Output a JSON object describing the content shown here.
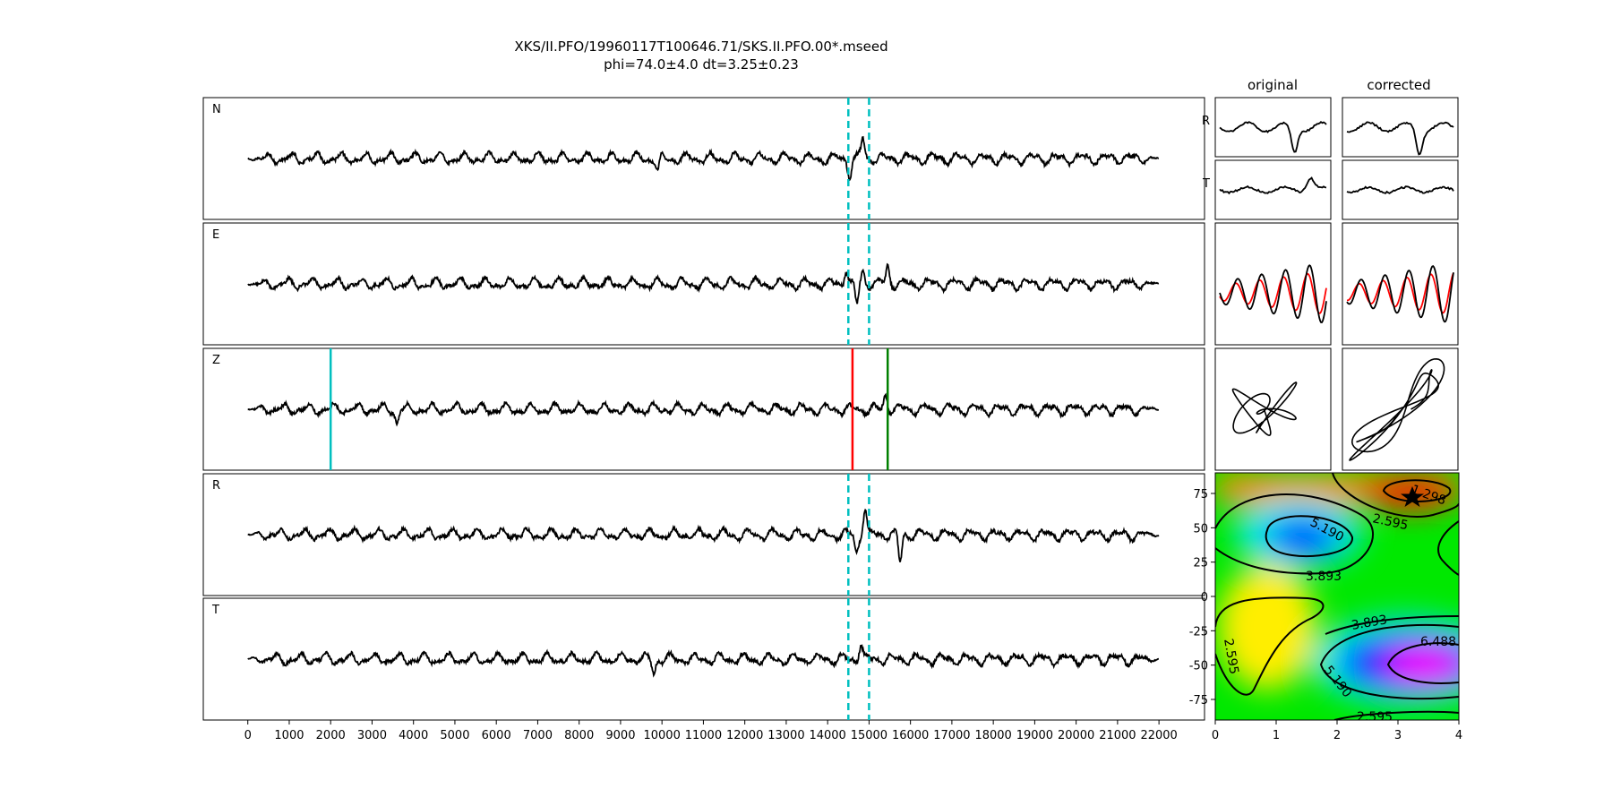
{
  "header": {
    "title": "XKS/II.PFO/19960117T100646.71/SKS.II.PFO.00*.mseed",
    "subtitle": "phi=74.0±4.0 dt=3.25±0.23"
  },
  "colors": {
    "trace": "#000000",
    "window": "#00bfbf",
    "pick_cyan": "#00bfbf",
    "pick_red": "#ff0000",
    "pick_green": "#008000",
    "reference": "#ff0000"
  },
  "chart_data": [
    {
      "type": "line",
      "title": "",
      "panels": [
        "N",
        "E",
        "Z",
        "R",
        "T"
      ],
      "xticks": [
        0,
        1000,
        2000,
        3000,
        4000,
        5000,
        6000,
        7000,
        8000,
        9000,
        10000,
        11000,
        12000,
        13000,
        14000,
        15000,
        16000,
        17000,
        18000,
        19000,
        20000,
        21000,
        22000
      ],
      "xlim": [
        -1075,
        23100
      ],
      "data_range": [
        0,
        22000
      ],
      "window_lines": [
        14500,
        15000
      ],
      "window_panels": [
        "N",
        "E",
        "R",
        "T"
      ],
      "picks": [
        {
          "panel": "Z",
          "x": 2000,
          "color": "cyan"
        },
        {
          "panel": "Z",
          "x": 14600,
          "color": "red"
        },
        {
          "panel": "Z",
          "x": 15450,
          "color": "green"
        }
      ],
      "grid": false
    },
    {
      "type": "line",
      "panels_cols": [
        "original",
        "corrected"
      ],
      "panels_rows": [
        "R",
        "T"
      ],
      "grid": false
    },
    {
      "type": "heatmap",
      "title": "",
      "xlim": [
        0,
        4
      ],
      "ylim": [
        -90,
        90
      ],
      "xticks": [
        0,
        1,
        2,
        3,
        4
      ],
      "yticks": [
        75,
        50,
        25,
        0,
        -25,
        -50,
        -75
      ],
      "contour_levels": [
        "1.298",
        "2.595",
        "3.893",
        "5.190",
        "6.488"
      ],
      "best": {
        "dt": 3.25,
        "phi": 74.0
      },
      "colormap": "gist_rainbow"
    }
  ]
}
